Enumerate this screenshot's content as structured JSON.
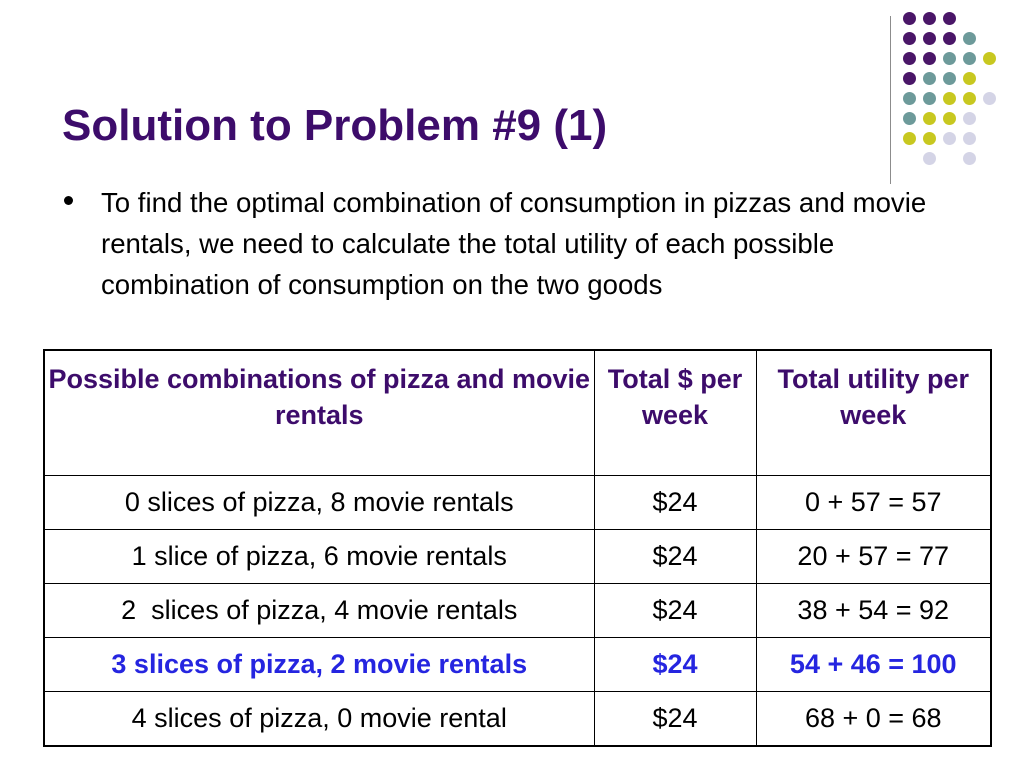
{
  "slide": {
    "title": "Solution to Problem #9 (1)",
    "bullet": "To find the optimal combination of consumption in pizzas and movie rentals, we need to calculate the total utility of each possible combination of consumption on the two goods"
  },
  "table": {
    "headers": [
      "Possible combinations of pizza and movie rentals",
      "Total $ per week",
      "Total utility per week"
    ],
    "rows": [
      [
        "0 slices of pizza, 8 movie rentals",
        "$24",
        "0 + 57 = 57"
      ],
      [
        "1 slice of pizza, 6 movie rentals",
        "$24",
        "20 + 57 = 77"
      ],
      [
        "2  slices of pizza, 4 movie rentals",
        "$24",
        "38 + 54 = 92"
      ],
      [
        "3 slices of pizza, 2 movie rentals",
        "$24",
        "54 + 46 = 100"
      ],
      [
        "4 slices of pizza, 0 movie rental",
        "$24",
        "68 + 0 = 68"
      ]
    ],
    "highlight_row": 3
  },
  "colors": {
    "title": "#3d0c6b",
    "highlight": "#2525e0",
    "dot_purple": "#4a1668",
    "dot_teal": "#6d9a9a",
    "dot_yellow": "#c8c820",
    "dot_lavender": "#d4d4e6"
  }
}
